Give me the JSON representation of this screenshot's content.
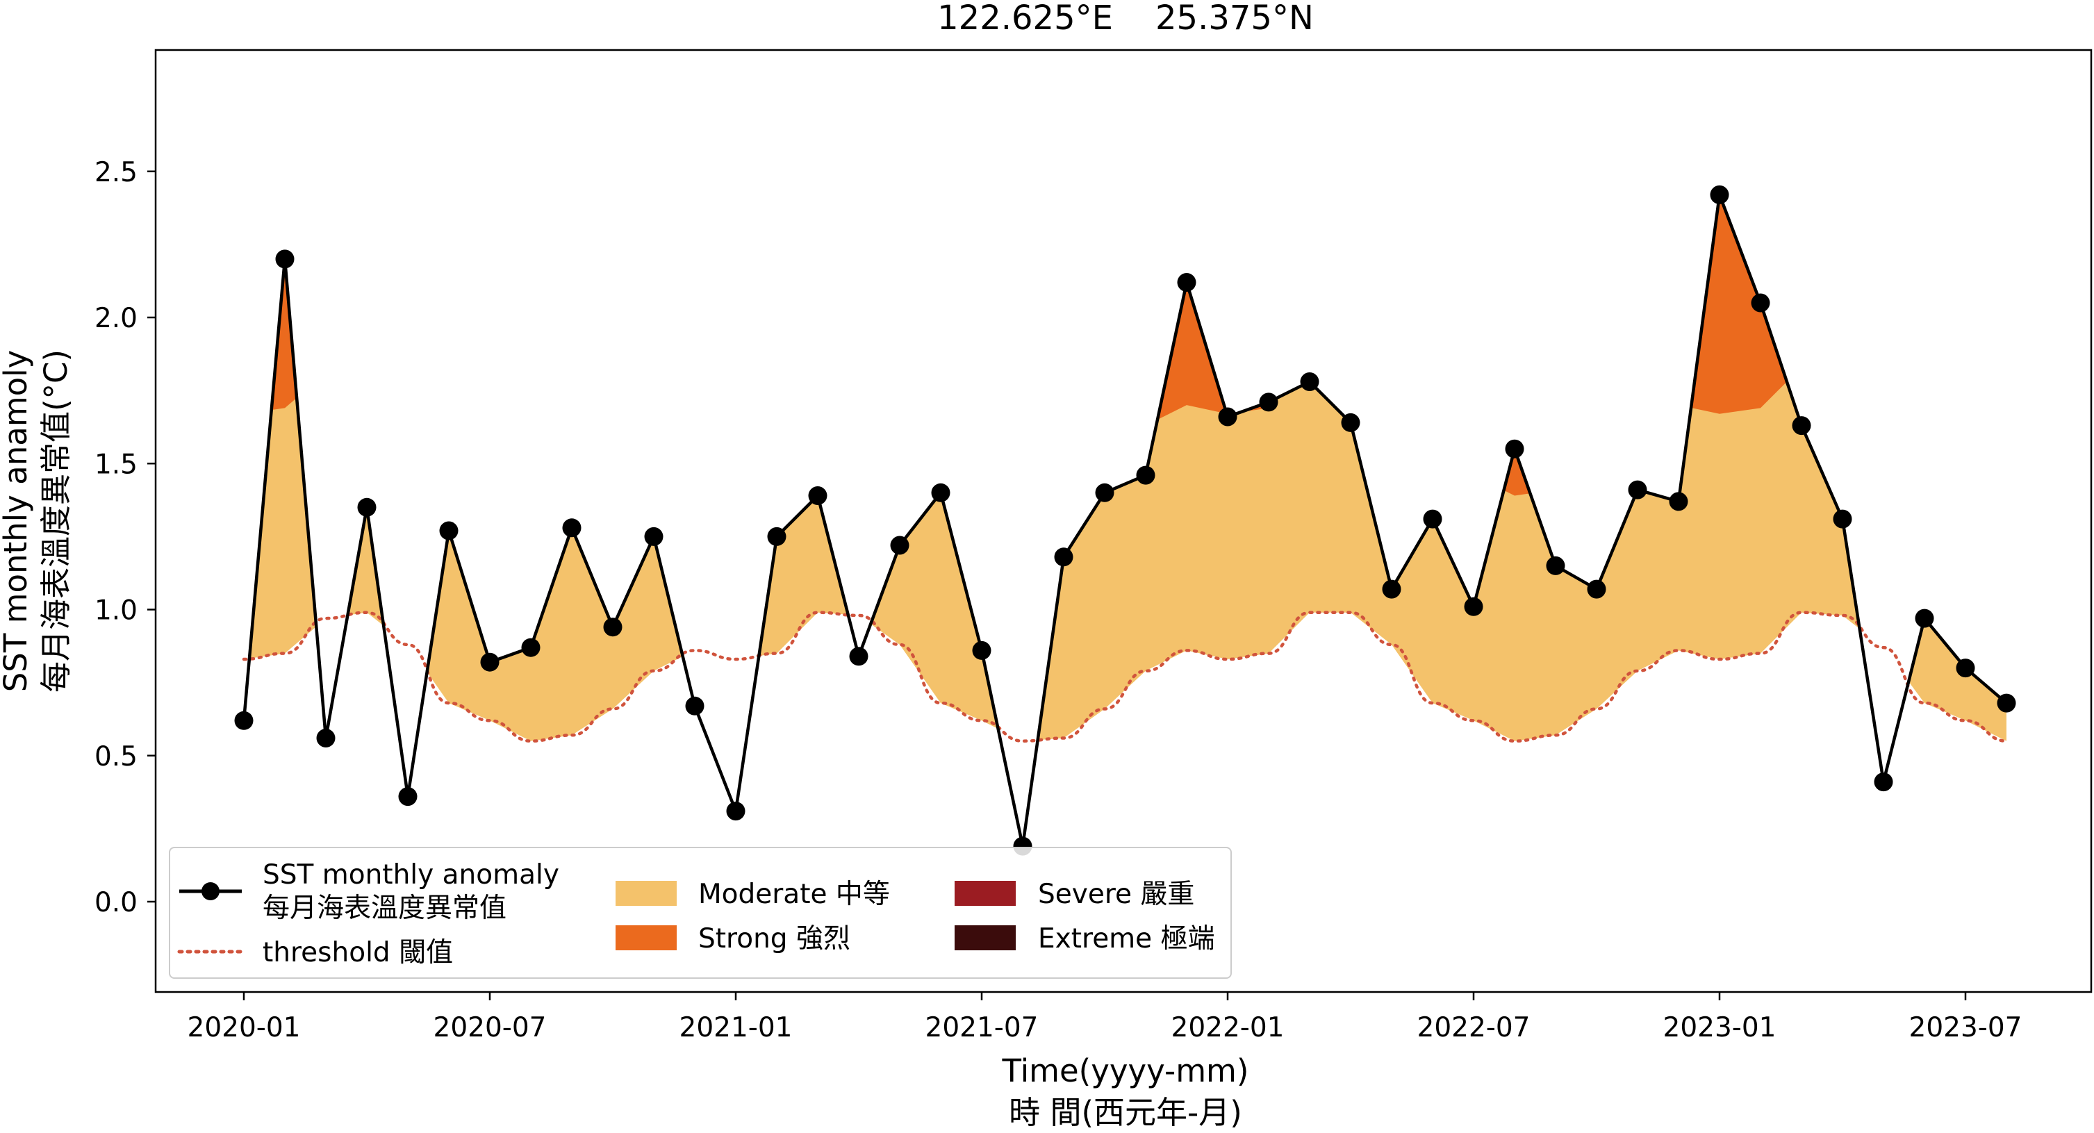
{
  "chart_data": {
    "type": "line",
    "title": "122.625°E    25.375°N",
    "xlabel": "Time(yyyy-mm)",
    "xlabel_line2": "時 間(西元年-月)",
    "ylabel": "SST monthly anamoly",
    "ylabel_line2": "每月海表溫度異常值(°C)",
    "ylim": [
      -0.32,
      2.9
    ],
    "y_ticks": [
      "0.0",
      "0.5",
      "1.0",
      "1.5",
      "2.0",
      "2.5"
    ],
    "y_tick_values": [
      0.0,
      0.5,
      1.0,
      1.5,
      2.0,
      2.5
    ],
    "x_ticks": [
      "2020-01",
      "2020-07",
      "2021-01",
      "2021-07",
      "2022-01",
      "2022-07",
      "2023-01",
      "2023-07"
    ],
    "x_tick_indices": [
      0,
      6,
      12,
      18,
      24,
      30,
      36,
      42
    ],
    "x": [
      "2020-01",
      "2020-02",
      "2020-03",
      "2020-04",
      "2020-05",
      "2020-06",
      "2020-07",
      "2020-08",
      "2020-09",
      "2020-10",
      "2020-11",
      "2020-12",
      "2021-01",
      "2021-02",
      "2021-03",
      "2021-04",
      "2021-05",
      "2021-06",
      "2021-07",
      "2021-08",
      "2021-09",
      "2021-10",
      "2021-11",
      "2021-12",
      "2022-01",
      "2022-02",
      "2022-03",
      "2022-04",
      "2022-05",
      "2022-06",
      "2022-07",
      "2022-08",
      "2022-09",
      "2022-10",
      "2022-11",
      "2022-12",
      "2023-01",
      "2023-02",
      "2023-03",
      "2023-04",
      "2023-05",
      "2023-06",
      "2023-07",
      "2023-08"
    ],
    "series": [
      {
        "name": "SST monthly anomaly 每月海表溫度異常值",
        "style": "line-marker",
        "color": "#000000",
        "values": [
          0.62,
          2.2,
          0.56,
          1.35,
          0.36,
          1.27,
          0.82,
          0.87,
          1.28,
          0.94,
          1.25,
          0.67,
          0.31,
          1.25,
          1.39,
          0.84,
          1.22,
          1.4,
          0.86,
          0.19,
          1.18,
          1.4,
          1.46,
          2.12,
          1.66,
          1.71,
          1.78,
          1.64,
          1.07,
          1.31,
          1.01,
          1.55,
          1.15,
          1.07,
          1.41,
          1.37,
          2.42,
          2.05,
          1.63,
          1.31,
          0.41,
          0.97,
          0.8,
          0.68
        ]
      },
      {
        "name": "threshold 閾值",
        "style": "dotted",
        "color": "#d0533c",
        "values": [
          0.83,
          0.85,
          0.97,
          0.99,
          0.88,
          0.68,
          0.62,
          0.55,
          0.57,
          0.66,
          0.79,
          0.86,
          0.83,
          0.85,
          0.99,
          0.98,
          0.88,
          0.68,
          0.62,
          0.55,
          0.56,
          0.66,
          0.79,
          0.86,
          0.83,
          0.85,
          0.99,
          0.99,
          0.88,
          0.68,
          0.62,
          0.55,
          0.57,
          0.66,
          0.79,
          0.86,
          0.83,
          0.85,
          0.99,
          0.98,
          0.87,
          0.68,
          0.62,
          0.55
        ]
      }
    ],
    "categories_fill": [
      {
        "name": "Moderate 中等",
        "color": "#f4c26b"
      },
      {
        "name": "Strong 強烈",
        "color": "#eb6a1e"
      },
      {
        "name": "Severe 嚴重",
        "color": "#9b1c22"
      },
      {
        "name": "Extreme 極端",
        "color": "#3b0c0c"
      }
    ],
    "legend_position": "lower-left",
    "grid": false
  },
  "legend": {
    "anomaly_line1": "SST monthly anomaly",
    "anomaly_line2": "每月海表溫度異常值",
    "threshold": "threshold 閾值",
    "moderate": "Moderate 中等",
    "strong": "Strong 強烈",
    "severe": "Severe 嚴重",
    "extreme": "Extreme 極端"
  }
}
